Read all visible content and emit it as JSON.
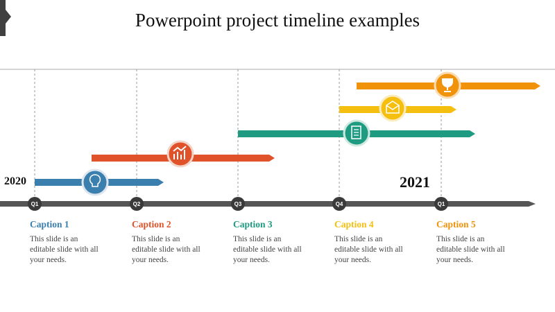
{
  "header": {
    "title": "Powerpoint project timeline examples"
  },
  "years": [
    "2020",
    "2021"
  ],
  "quarters": [
    "Q1",
    "Q2",
    "Q3",
    "Q4",
    "Q1"
  ],
  "captions": [
    {
      "title": "Caption 1",
      "lines": [
        "This slide is an",
        "editable slide with all",
        "your needs."
      ]
    },
    {
      "title": "Caption 2",
      "lines": [
        "This slide is an",
        "editable slide with all",
        "your needs."
      ]
    },
    {
      "title": "Caption 3",
      "lines": [
        "This slide is an",
        "editable slide with all",
        "your needs."
      ]
    },
    {
      "title": "Caption 4",
      "lines": [
        "This slide is an",
        "editable slide with all",
        "your needs."
      ]
    },
    {
      "title": "Caption 5",
      "lines": [
        "This slide is an",
        "editable slide with all",
        "your needs."
      ]
    }
  ]
}
